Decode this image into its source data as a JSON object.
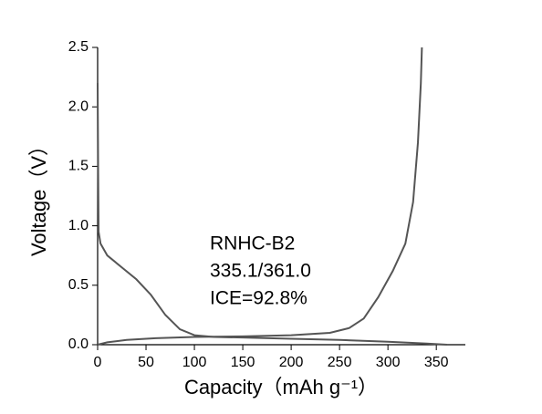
{
  "chart_data": {
    "type": "line",
    "xlabel": "Capacity（mAh g⁻¹）",
    "ylabel": "Voltage（V）",
    "annotations": [
      "RNHC-B2",
      "335.1/361.0",
      "ICE=92.8%"
    ],
    "xlim": [
      0,
      380
    ],
    "ylim": [
      0,
      2.5
    ],
    "xticks": [
      0,
      50,
      100,
      150,
      200,
      250,
      300,
      350
    ],
    "yticks": [
      {
        "value": 0,
        "label": "0.0"
      },
      0.5,
      {
        "value": 1,
        "label": "1.0"
      },
      1.5,
      {
        "value": 2,
        "label": "2.0"
      },
      2.5
    ],
    "series": [
      {
        "color": "#555555",
        "x": [
          0,
          0.5,
          1,
          3,
          10,
          25,
          40,
          55,
          70,
          85,
          100,
          120,
          150,
          200,
          250,
          300,
          340,
          361
        ],
        "values": [
          2.2,
          1.5,
          0.95,
          0.85,
          0.75,
          0.65,
          0.55,
          0.42,
          0.25,
          0.13,
          0.08,
          0.065,
          0.06,
          0.05,
          0.04,
          0.025,
          0.01,
          0
        ]
      },
      {
        "color": "#555555",
        "x": [
          0,
          10,
          30,
          60,
          100,
          150,
          200,
          240,
          260,
          275,
          290,
          305,
          318,
          326,
          331,
          334,
          335.1
        ],
        "values": [
          0,
          0.02,
          0.04,
          0.055,
          0.065,
          0.07,
          0.08,
          0.1,
          0.14,
          0.22,
          0.4,
          0.62,
          0.85,
          1.2,
          1.7,
          2.2,
          2.5
        ]
      }
    ]
  }
}
